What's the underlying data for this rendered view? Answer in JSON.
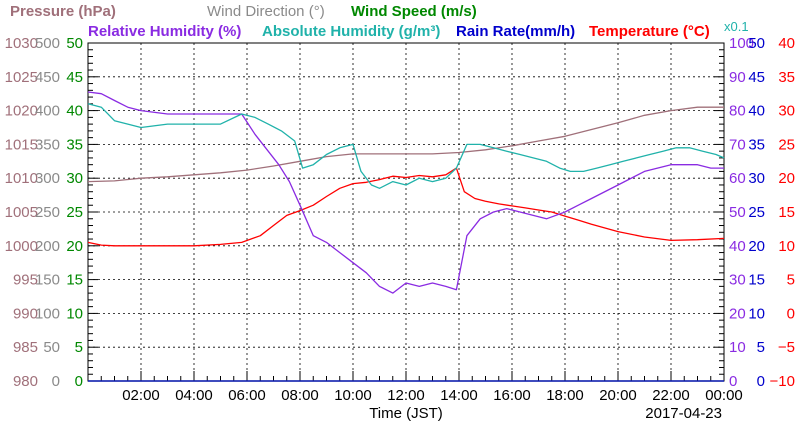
{
  "chart_data": {
    "type": "line",
    "date": "2017-04-23",
    "xlabel": "Time (JST)",
    "x_ticks": [
      "02:00",
      "04:00",
      "06:00",
      "08:00",
      "10:00",
      "12:00",
      "14:00",
      "16:00",
      "18:00",
      "20:00",
      "22:00",
      "00:00"
    ],
    "x_range_hours": [
      0,
      24
    ],
    "grid": true,
    "legend": [
      {
        "text": "Pressure (hPa)",
        "color": "#a0707a"
      },
      {
        "text": "Wind Direction (°)",
        "color": "#8a8a8a"
      },
      {
        "text": "Wind Speed (m/s)",
        "color": "#008800"
      },
      {
        "text": "Relative Humidity (%)",
        "color": "#8a2be2"
      },
      {
        "text": "Absolute Humidity (g/m³)",
        "color": "#20b2aa"
      },
      {
        "text": "Rain Rate(mm/h)",
        "color": "#0000cc"
      },
      {
        "text": "Temperature (°C)",
        "color": "#ff0000"
      }
    ],
    "scale_note": "x0.1",
    "axes": {
      "pressure": {
        "ticks": [
          "1030",
          "1025",
          "1020",
          "1015",
          "1010",
          "1005",
          "1000",
          "995",
          "990",
          "985",
          "980"
        ],
        "range": [
          980,
          1030
        ],
        "color": "#a0707a"
      },
      "wind_direction": {
        "ticks": [
          "500",
          "450",
          "400",
          "350",
          "300",
          "250",
          "200",
          "150",
          "100",
          "50",
          "0"
        ],
        "range": [
          0,
          500
        ],
        "color": "#8a8a8a"
      },
      "wind_speed": {
        "ticks": [
          "50",
          "45",
          "40",
          "35",
          "30",
          "25",
          "20",
          "15",
          "10",
          "5",
          "0"
        ],
        "range": [
          0,
          50
        ],
        "color": "#008800"
      },
      "humidity": {
        "ticks": [
          "100",
          "90",
          "80",
          "70",
          "60",
          "50",
          "40",
          "30",
          "20",
          "10",
          "0"
        ],
        "range": [
          0,
          100
        ],
        "color": "#8a2be2"
      },
      "rain_rate": {
        "ticks": [
          "50",
          "45",
          "40",
          "35",
          "30",
          "25",
          "20",
          "15",
          "10",
          "5",
          "0"
        ],
        "range": [
          0,
          50
        ],
        "color": "#0000cc"
      },
      "temperature": {
        "ticks": [
          "40",
          "35",
          "30",
          "25",
          "20",
          "15",
          "10",
          "5",
          "0",
          "−5",
          "−10"
        ],
        "range": [
          -10,
          40
        ],
        "color": "#ff0000"
      }
    },
    "series": [
      {
        "name": "Pressure (hPa)",
        "color": "#a0707a",
        "axis": "pressure",
        "x": [
          0,
          1,
          2,
          3,
          4,
          5,
          6,
          7,
          8,
          9,
          10,
          11,
          12,
          13,
          14,
          15,
          16,
          17,
          18,
          19,
          20,
          21,
          22,
          23,
          24
        ],
        "y": [
          1009.5,
          1009.6,
          1010,
          1010.2,
          1010.5,
          1010.8,
          1011.2,
          1011.8,
          1012.5,
          1013.2,
          1013.6,
          1013.6,
          1013.6,
          1013.6,
          1013.8,
          1014.2,
          1014.8,
          1015.5,
          1016.2,
          1017.2,
          1018.2,
          1019.3,
          1020,
          1020.5,
          1020.5
        ]
      },
      {
        "name": "Temperature (°C)",
        "color": "#ff0000",
        "axis": "temperature",
        "x": [
          0,
          0.5,
          1,
          2,
          3,
          4,
          5,
          5.8,
          6.5,
          7,
          7.5,
          8,
          8.5,
          9,
          9.5,
          10,
          10.5,
          11,
          11.5,
          12,
          12.5,
          13,
          13.5,
          13.9,
          14.2,
          14.6,
          15,
          15.5,
          16,
          16.5,
          17,
          17.5,
          18,
          18.5,
          19,
          20,
          21,
          22,
          23,
          24
        ],
        "y": [
          10.5,
          10.1,
          10,
          10,
          10,
          10,
          10.2,
          10.5,
          11.5,
          13,
          14.5,
          15.2,
          16,
          17.3,
          18.5,
          19.2,
          19.4,
          19.8,
          20.3,
          20.1,
          20.4,
          20.2,
          20.5,
          21.5,
          18,
          17,
          16.6,
          16.2,
          15.9,
          15.6,
          15.3,
          15,
          14.4,
          13.8,
          13.2,
          12.1,
          11.3,
          10.8,
          10.9,
          11.1
        ]
      },
      {
        "name": "Relative Humidity (%)",
        "color": "#8a2be2",
        "axis": "humidity",
        "x": [
          0,
          0.5,
          1,
          1.5,
          2,
          3,
          4,
          5,
          5.8,
          6.3,
          6.8,
          7.2,
          7.6,
          8,
          8.5,
          9,
          9.5,
          10,
          10.5,
          11,
          11.5,
          12,
          12.5,
          13,
          13.5,
          13.9,
          14.3,
          14.8,
          15.3,
          15.8,
          16.3,
          16.8,
          17.3,
          18,
          18.5,
          19,
          20,
          21,
          22,
          23,
          23.5,
          24
        ],
        "y": [
          85.5,
          85,
          83,
          81,
          80,
          79,
          79,
          79,
          79,
          73,
          68,
          64,
          59,
          52,
          43,
          41,
          38,
          35,
          32,
          28,
          26,
          29,
          28,
          29,
          28,
          27,
          43,
          48,
          50,
          51,
          50,
          49,
          48,
          50,
          52,
          54,
          58,
          62,
          64,
          64,
          63,
          63
        ]
      },
      {
        "name": "Absolute Humidity (g/m³)",
        "color": "#20b2aa",
        "axis": "humidity",
        "x": [
          0,
          0.5,
          1,
          1.5,
          2,
          3,
          4,
          5,
          5.8,
          6.3,
          6.8,
          7.3,
          7.8,
          8.1,
          8.5,
          9,
          9.5,
          10,
          10.3,
          10.7,
          11,
          11.5,
          12,
          12.5,
          13,
          13.5,
          13.9,
          14.3,
          14.8,
          15.3,
          15.8,
          16.3,
          16.8,
          17.3,
          17.8,
          18.2,
          18.7,
          19.2,
          19.7,
          20.2,
          20.7,
          21.2,
          21.7,
          22.2,
          22.7,
          23.2,
          23.7,
          24
        ],
        "y": [
          82,
          81,
          77,
          76,
          75,
          76,
          76,
          76,
          79,
          78,
          76,
          74,
          71,
          63,
          64,
          67,
          69,
          70,
          62,
          58,
          57,
          59,
          58,
          60,
          59,
          60,
          63,
          70,
          70,
          69,
          68,
          67,
          66,
          65,
          63,
          62,
          62,
          63,
          64,
          65,
          66,
          67,
          68,
          69,
          69,
          68,
          67,
          66
        ]
      },
      {
        "name": "Wind Direction (°)",
        "color": "#8a8a8a",
        "axis": "wind_direction",
        "x": [
          0,
          24
        ],
        "y": [
          0,
          0
        ]
      },
      {
        "name": "Wind Speed (m/s)",
        "color": "#008800",
        "axis": "wind_speed",
        "x": [
          0,
          24
        ],
        "y": [
          0,
          0
        ]
      },
      {
        "name": "Rain Rate(mm/h)",
        "color": "#0000cc",
        "axis": "rain_rate",
        "x": [
          0,
          24
        ],
        "y": [
          0,
          0
        ]
      }
    ]
  }
}
